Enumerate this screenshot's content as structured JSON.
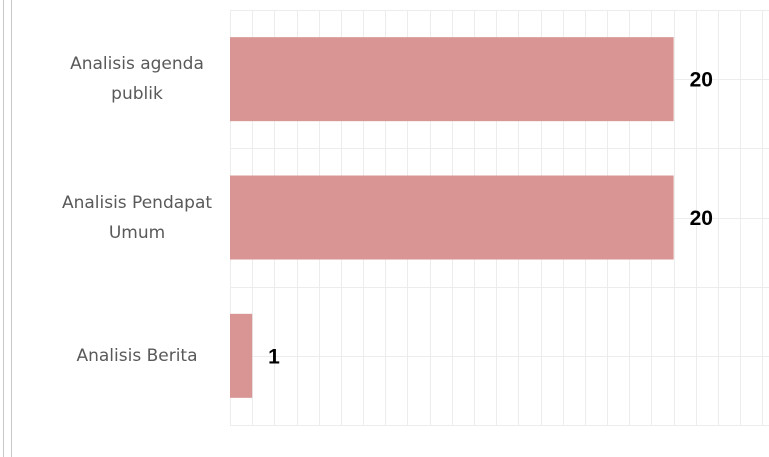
{
  "chart_data": {
    "type": "bar",
    "orientation": "horizontal",
    "categories": [
      "Analisis agenda publik",
      "Analisis Pendapat Umum",
      "Analisis Berita"
    ],
    "values": [
      20,
      20,
      1
    ],
    "color": "#d99594",
    "xlim": [
      0,
      24.3
    ],
    "xticks": [
      0,
      1,
      2,
      3,
      4,
      5,
      6,
      7,
      8,
      9,
      10,
      11,
      12,
      13,
      14,
      15,
      16,
      17,
      18,
      19,
      20,
      21,
      22,
      23,
      24
    ],
    "grid": true
  }
}
